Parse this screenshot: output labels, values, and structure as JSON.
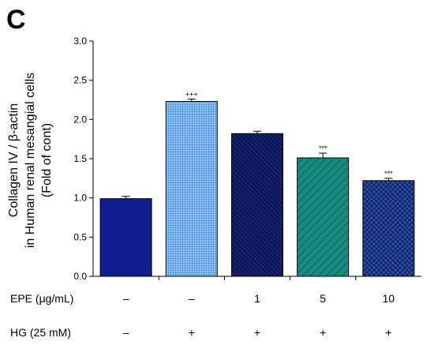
{
  "panel_label": "C",
  "chart_data": {
    "type": "bar",
    "ylabel_lines": [
      "Collagen IV / β-actin",
      "in Human renal mesangial cells",
      "(Fold of cont)"
    ],
    "ylim": [
      0,
      3.0
    ],
    "yticks": [
      "0.0",
      "0.5",
      "1.0",
      "1.5",
      "2.0",
      "2.5",
      "3.0"
    ],
    "grid": false,
    "values": [
      0.99,
      2.23,
      1.82,
      1.51,
      1.22
    ],
    "errors": [
      0.03,
      0.03,
      0.03,
      0.06,
      0.03
    ],
    "significance": [
      "",
      "+++",
      "",
      "***",
      "***"
    ],
    "bar_colors": [
      "#0e1e8c",
      "#1f77e0",
      "#0b1557",
      "#178a80",
      "#1f3d8a"
    ],
    "bar_patterns": [
      "solid",
      "grid",
      "diag-dense",
      "diag",
      "crosshatch"
    ],
    "conditions": [
      {
        "label": "EPE (μg/mL)",
        "values": [
          "–",
          "–",
          "1",
          "5",
          "10"
        ]
      },
      {
        "label": "HG (25 mM)",
        "values": [
          "–",
          "+",
          "+",
          "+",
          "+"
        ]
      }
    ]
  }
}
